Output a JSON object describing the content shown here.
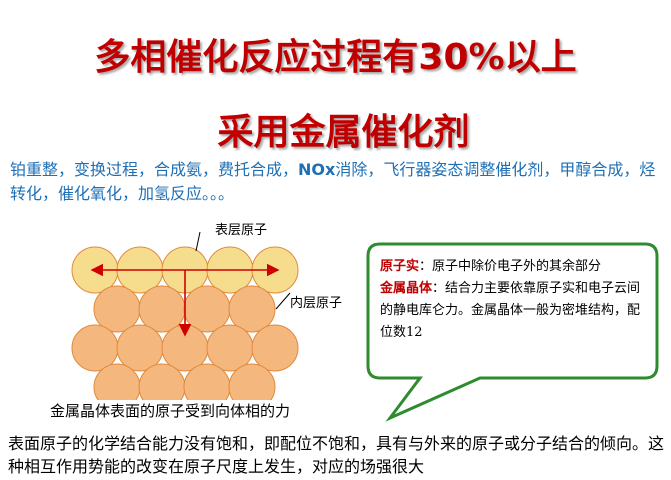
{
  "title": {
    "line1": "多相催化反应过程有30%以上",
    "line2": "采用金属催化剂"
  },
  "intro": {
    "part1": "铂重整，变换过程，合成氨，费托合成，",
    "nox": "NOx",
    "part2": "消除，飞行器姿态调整催化剂，甲醇合成，烃转化，催化氧化，加氢反应。。。"
  },
  "diagram": {
    "surface_label": "表层原子",
    "inner_label": "内层原子",
    "caption": "金属晶体表面的原子受到向体相的力",
    "surface_color": "#f6dc8d",
    "inner_color": "#f4b77e",
    "arrow_color": "#d00000"
  },
  "bubble": {
    "term1": "原子实",
    "def1": "：原子中除价电子外的其余部分",
    "term2": "金属晶体",
    "def2": "：结合力主要依靠原子实和电子云间的静电库仑力。金属晶体一般为密堆结构，配位数12",
    "border_color": "#2e8b2e"
  },
  "bottom_text": "表面原子的化学结合能力没有饱和，即配位不饱和，具有与外来的原子或分子结合的倾向。这种相互作用势能的改变在原子尺度上发生，对应的场强很大"
}
